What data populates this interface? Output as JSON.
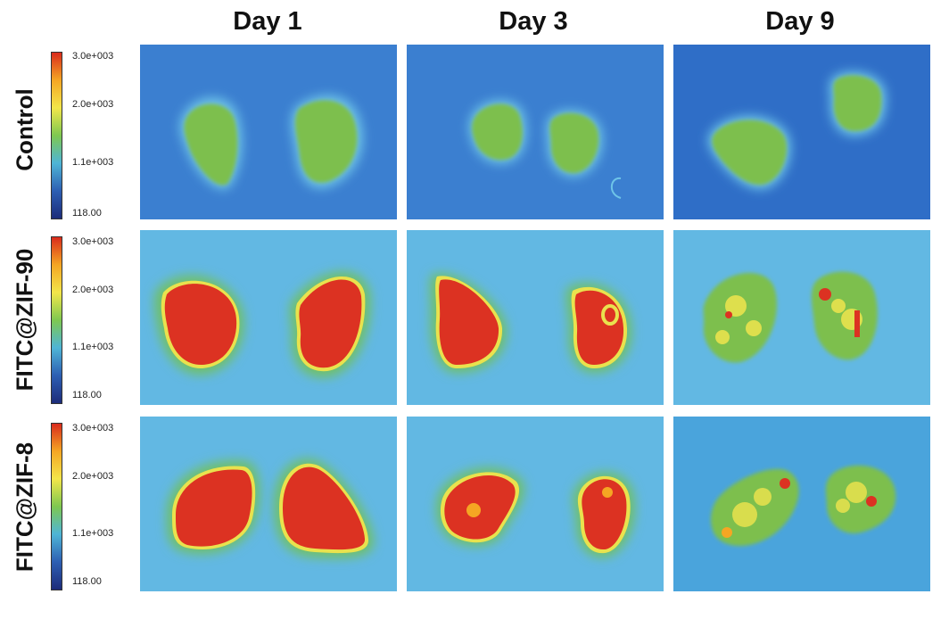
{
  "columns": [
    "Day 1",
    "Day 3",
    "Day 9"
  ],
  "rows": [
    "Control",
    "FITC@ZIF-90",
    "FITC@ZIF-8"
  ],
  "colorbar": {
    "ticks": [
      "3.0e+003",
      "2.0e+003",
      "1.1e+003",
      "118.00"
    ],
    "colors": [
      "#d92b1c",
      "#f5a623",
      "#f3e64a",
      "#7ec850",
      "#4fb5d6",
      "#2d5fb3",
      "#1d2c7a"
    ]
  },
  "colors": {
    "control_bg": "#3b7fd0",
    "zif_bg": "#62b8e3",
    "tissue_green": "#7dbf4d",
    "hot_red": "#dc3222",
    "edge_yellow": "#e9e24e"
  }
}
